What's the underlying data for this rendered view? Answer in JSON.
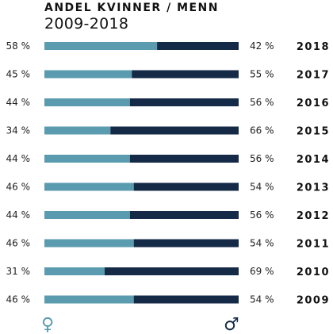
{
  "title": "ANDEL KVINNER / MENN",
  "subtitle": "2009-2018",
  "colors": {
    "women": "#5b9bb0",
    "men": "#152a47"
  },
  "symbols": {
    "women": "♀",
    "men": "♂"
  },
  "chart_data": {
    "type": "bar",
    "stacked": true,
    "orientation": "horizontal",
    "categories": [
      "2018",
      "2017",
      "2016",
      "2015",
      "2014",
      "2013",
      "2012",
      "2011",
      "2010",
      "2009"
    ],
    "series": [
      {
        "key": "women",
        "values": [
          58,
          45,
          44,
          34,
          44,
          46,
          44,
          46,
          31,
          46
        ],
        "labels": [
          "58 %",
          "45 %",
          "44 %",
          "34 %",
          "44 %",
          "46 %",
          "44 %",
          "46 %",
          "31 %",
          "46 %"
        ]
      },
      {
        "key": "men",
        "values": [
          42,
          55,
          56,
          66,
          56,
          54,
          56,
          54,
          69,
          54
        ],
        "labels": [
          "42 %",
          "55 %",
          "56 %",
          "66 %",
          "56 %",
          "54 %",
          "56 %",
          "54 %",
          "69 %",
          "54 %"
        ]
      }
    ],
    "xlim": [
      0,
      100
    ],
    "grid": false
  }
}
